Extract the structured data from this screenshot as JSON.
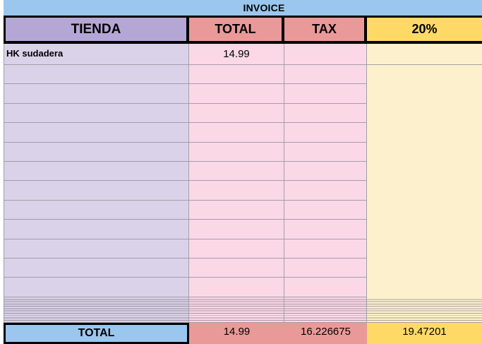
{
  "title": "INVOICE",
  "colors": {
    "banner_blue": "#9bc7ee",
    "header_purple": "#b4a7d6",
    "header_salmon": "#ea9999",
    "header_yellow": "#ffd966",
    "body_purple": "#d9d2e8",
    "body_pink": "#fbd8e6",
    "body_yellow": "#fdf1cd",
    "grid_line": "#a49ea8",
    "border_black": "#000000"
  },
  "table": {
    "headers": {
      "tienda": "TIENDA",
      "total": "TOTAL",
      "tax": "TAX",
      "pct": "20%"
    },
    "first_row": {
      "tienda": "HK sudadera",
      "total": "14.99",
      "tax": "",
      "pct": ""
    },
    "empty_row_count": 12,
    "compressed_row_count": 11,
    "totals": {
      "label": "TOTAL",
      "total": "14.99",
      "tax": "16.226675",
      "pct": "19.47201"
    }
  }
}
